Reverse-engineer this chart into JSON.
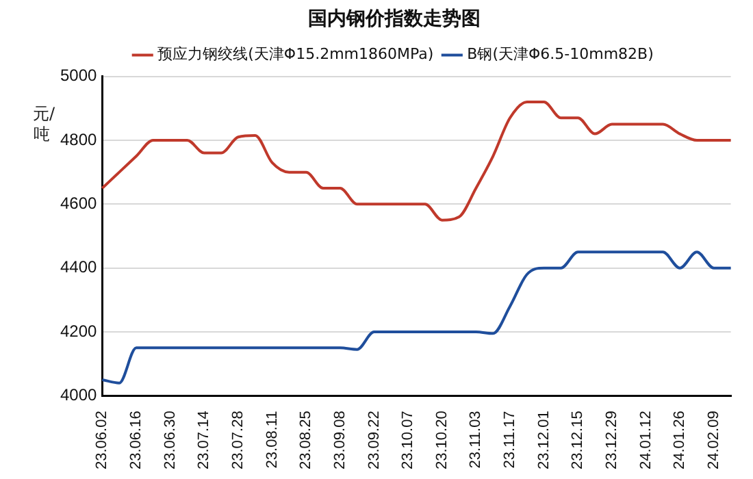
{
  "chart_data": {
    "type": "line",
    "title": "国内钢价指数走势图",
    "ylabel": "元/吨",
    "categories": [
      "23.06.02",
      null,
      "23.06.16",
      null,
      "23.06.30",
      null,
      "23.07.14",
      null,
      "23.07.28",
      null,
      "23.08.11",
      null,
      "23.08.25",
      null,
      "23.09.08",
      null,
      "23.09.22",
      null,
      "23.10.07",
      null,
      "23.10.20",
      null,
      "23.11.03",
      null,
      "23.11.17",
      null,
      "23.12.01",
      null,
      "23.12.15",
      null,
      "23.12.29",
      null,
      "24.01.12",
      null,
      "24.01.26",
      null,
      "24.02.09",
      null
    ],
    "series": [
      {
        "name": "预应力钢绞线(天津Φ15.2mm1860MPa)",
        "color": "#c0392b",
        "values": [
          4650,
          4700,
          4750,
          4800,
          4800,
          4800,
          4760,
          4760,
          4810,
          4815,
          4730,
          4700,
          4700,
          4650,
          4650,
          4600,
          4600,
          4600,
          4600,
          4600,
          4550,
          4560,
          4650,
          4750,
          4870,
          4920,
          4920,
          4870,
          4870,
          4820,
          4850,
          4850,
          4850,
          4850,
          4820,
          4800,
          4800,
          4800
        ]
      },
      {
        "name": "B钢(天津Φ6.5-10mm82B)",
        "color": "#1f4e9c",
        "values": [
          4050,
          4040,
          4150,
          4150,
          4150,
          4150,
          4150,
          4150,
          4150,
          4150,
          4150,
          4150,
          4150,
          4150,
          4150,
          4145,
          4200,
          4200,
          4200,
          4200,
          4200,
          4200,
          4200,
          4195,
          4280,
          4380,
          4400,
          4400,
          4450,
          4450,
          4450,
          4450,
          4450,
          4450,
          4400,
          4450,
          4400,
          4400
        ]
      }
    ],
    "ylim": [
      4000,
      5000
    ],
    "yticks": [
      4000,
      4200,
      4400,
      4600,
      4800,
      5000
    ],
    "grid": "y",
    "legend": "top",
    "marker": "none",
    "line_style": "solid"
  }
}
